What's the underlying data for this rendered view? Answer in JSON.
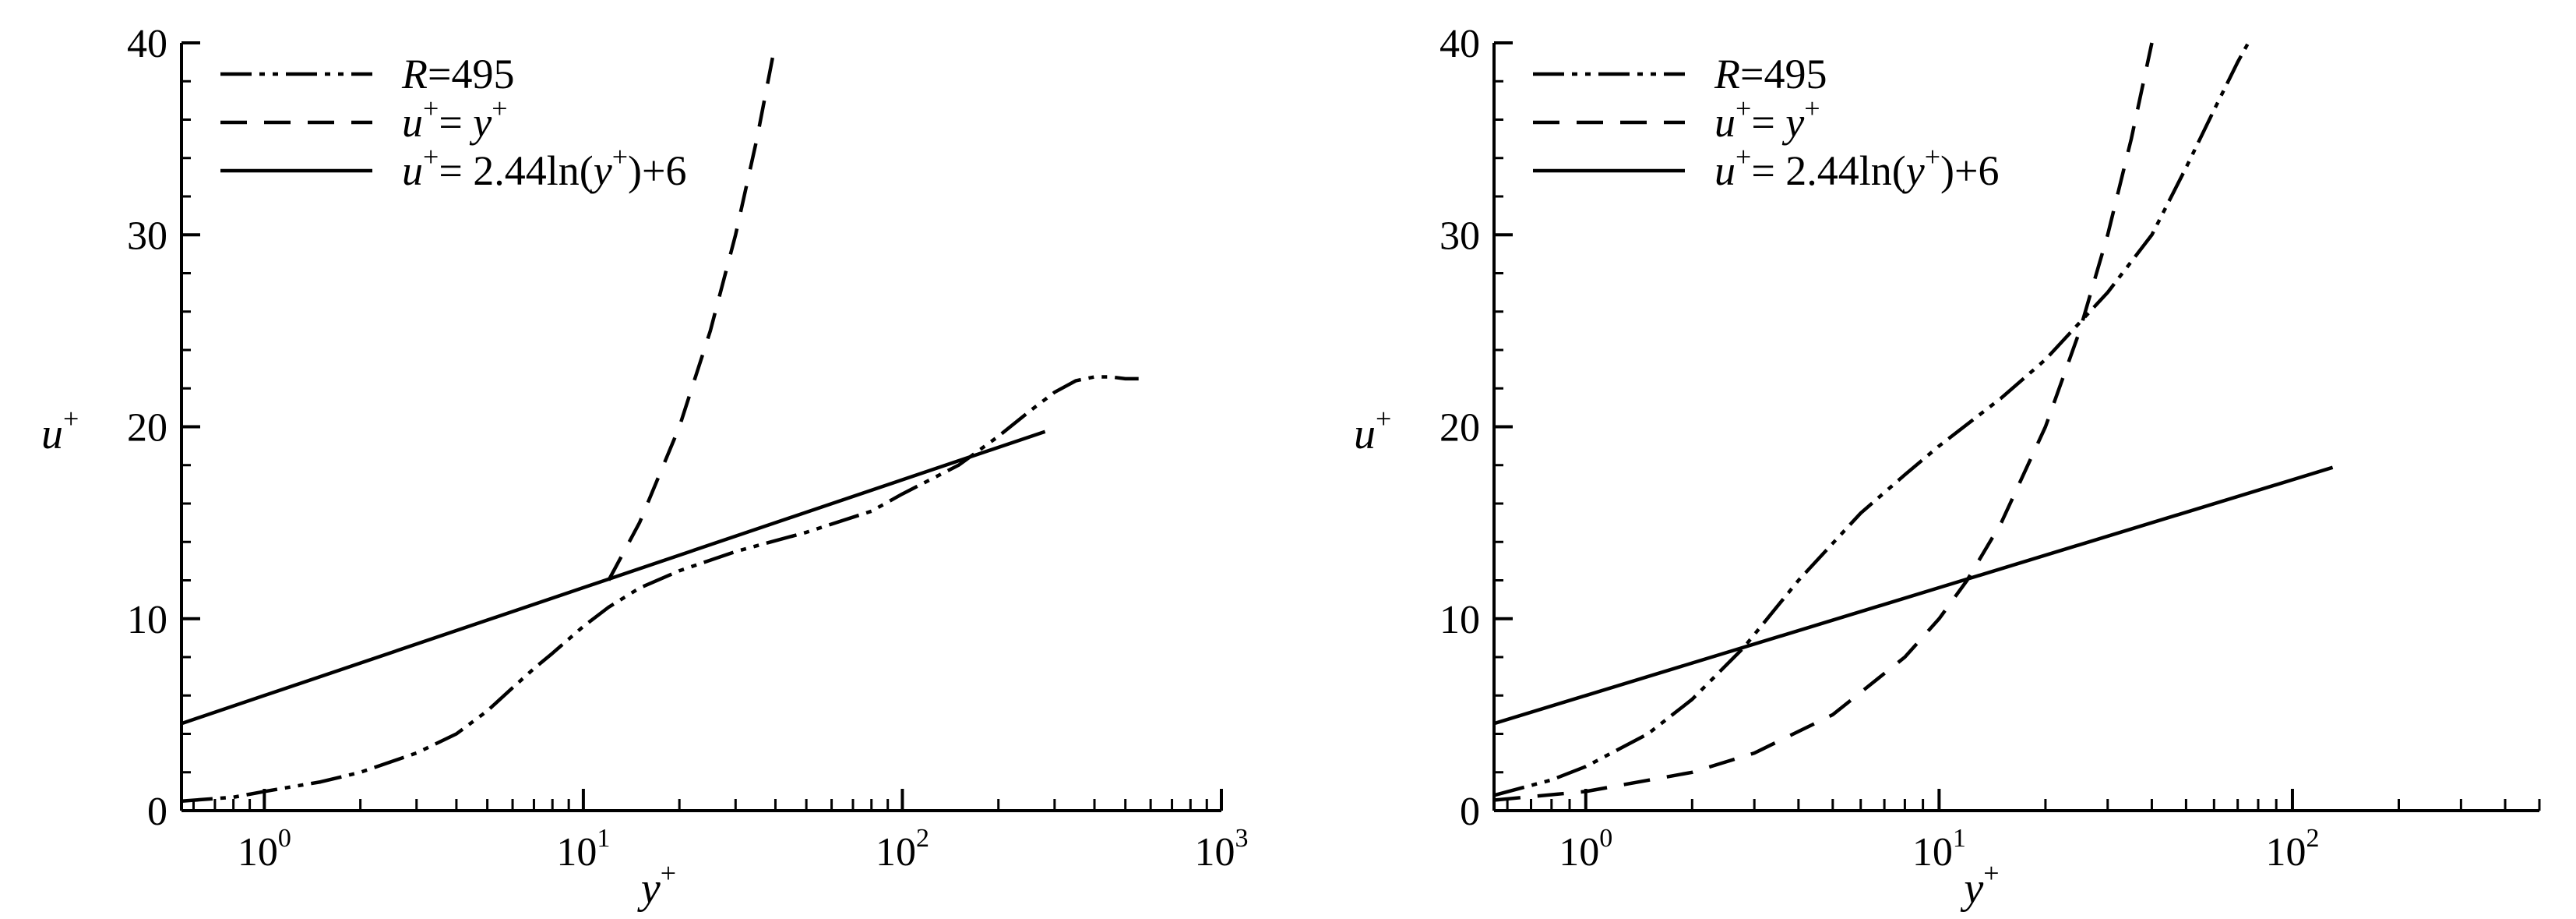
{
  "chart_data": [
    {
      "type": "line",
      "panel": "left",
      "xscale": "log",
      "xlim": [
        0.55,
        1000
      ],
      "ylim": [
        0,
        40
      ],
      "x_ticks": [
        "0",
        "1",
        "2",
        "3"
      ],
      "y_ticks": [
        "0",
        "10",
        "20",
        "30",
        "40"
      ],
      "xlabel": "y+",
      "ylabel": "u+",
      "grid": false,
      "legend_position": "top-left",
      "series": [
        {
          "name": "R=495",
          "style": "dash-dot-dot",
          "x": [
            0.55,
            0.8,
            1.0,
            1.5,
            2.0,
            3.0,
            4.0,
            5.0,
            6.0,
            7.0,
            8.0,
            10.0,
            12.0,
            15.0,
            20.0,
            30.0,
            50.0,
            80.0,
            100.0,
            150.0,
            200.0,
            250.0,
            300.0,
            350.0,
            400.0,
            450.0,
            500.0,
            550.0
          ],
          "y": [
            0.5,
            0.7,
            1.0,
            1.5,
            2.0,
            3.0,
            4.0,
            5.2,
            6.4,
            7.4,
            8.2,
            9.6,
            10.6,
            11.6,
            12.5,
            13.5,
            14.5,
            15.6,
            16.5,
            18.0,
            19.5,
            20.8,
            21.8,
            22.4,
            22.6,
            22.6,
            22.5,
            22.5
          ]
        },
        {
          "name": "u+ = y+",
          "style": "dashed",
          "x": [
            12,
            15,
            20,
            25,
            30,
            35,
            40
          ],
          "y": [
            12,
            15,
            20,
            25,
            30,
            35,
            40
          ]
        },
        {
          "name": "u+ = 2.44ln(y+)+6",
          "style": "solid",
          "x": [
            0.55,
            1,
            10,
            100,
            280
          ],
          "y": [
            4.54,
            6.0,
            11.62,
            17.24,
            19.75
          ]
        }
      ]
    },
    {
      "type": "line",
      "panel": "right",
      "xscale": "log",
      "xlim": [
        0.55,
        500
      ],
      "ylim": [
        0,
        40
      ],
      "x_ticks": [
        "0",
        "1",
        "2"
      ],
      "y_ticks": [
        "0",
        "10",
        "20",
        "30",
        "40"
      ],
      "xlabel": "y+",
      "ylabel": "u+",
      "grid": false,
      "legend_position": "top-left",
      "series": [
        {
          "name": "R=495",
          "style": "dash-dot-dot",
          "x": [
            0.55,
            0.8,
            1.0,
            1.5,
            2.0,
            2.8,
            4.0,
            6.0,
            8.0,
            10.0,
            15.0,
            20.0,
            30.0,
            40.0,
            50.0,
            60.0,
            70.0,
            75.0
          ],
          "y": [
            0.8,
            1.6,
            2.3,
            4.0,
            5.8,
            8.5,
            12.0,
            15.5,
            17.5,
            19.0,
            21.5,
            23.5,
            27.0,
            30.0,
            33.5,
            36.5,
            39.0,
            40.0
          ]
        },
        {
          "name": "u+ = y+",
          "style": "dashed",
          "x": [
            0.55,
            1,
            2,
            3,
            5,
            8,
            10,
            12,
            15,
            20,
            25,
            30,
            35,
            40
          ],
          "y": [
            0.55,
            1,
            2,
            3,
            5,
            8,
            10,
            12,
            15,
            20,
            25,
            30,
            35,
            40
          ]
        },
        {
          "name": "u+ = 2.44ln(y+)+6",
          "style": "solid",
          "x": [
            0.55,
            1,
            10,
            100,
            130
          ],
          "y": [
            4.54,
            6.0,
            11.62,
            17.24,
            17.88
          ]
        }
      ]
    }
  ],
  "legend": {
    "entries": [
      {
        "prefix_italic": "R",
        "rest": "=495"
      },
      {
        "prefix_italic": "u",
        "sup1": "+",
        "mid": "= ",
        "var2": "y",
        "sup2": "+",
        "tail": ""
      },
      {
        "prefix_italic": "u",
        "sup1": "+",
        "mid": "= 2.44ln(",
        "var2": "y",
        "sup2": "+",
        "tail": ")+6"
      }
    ]
  },
  "axis_text": {
    "x_var": "y",
    "y_var": "u",
    "sup": "+",
    "tick_base": "10"
  }
}
